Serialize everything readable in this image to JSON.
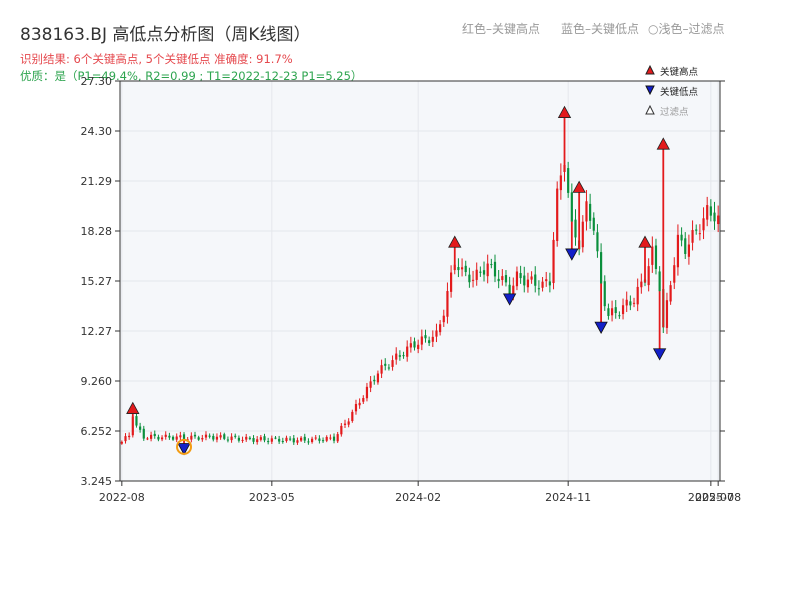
{
  "header": {
    "title": "838163.BJ 高低点分析图（周K线图）",
    "result_line": "识别结果: 6个关键高点, 5个关键低点  准确度: 91.7%",
    "quality_line": "优质：是（P1=49.4%, R2=0.99 ; T1=2022-12-23 P1=5.25）",
    "note_red": "红色–关键高点",
    "note_blue": "蓝色–关键低点",
    "note_filtered": "○浅色–过滤点"
  },
  "legend": {
    "high": "关键高点",
    "low": "关键低点",
    "filtered": "过滤点"
  },
  "colors": {
    "up": "#e31a1c",
    "down": "#0a8f3c",
    "high_marker": "#e31a1c",
    "low_marker": "#1320c8",
    "filtered_ring": "#f39c12",
    "plot_bg": "#f5f7fa",
    "grid": "#e4e7ec"
  },
  "chart_data": {
    "type": "candlestick",
    "title": "838163.BJ 高低点分析图（周K线图）",
    "y_ticks": [
      "3.245",
      "6.252",
      "9.260",
      "12.27",
      "15.27",
      "18.28",
      "21.29",
      "24.30",
      "27.30"
    ],
    "ylim": [
      3.245,
      27.3
    ],
    "x_ticks": [
      "2022-08",
      "2023-05",
      "2024-02",
      "2024-11",
      "2025-07",
      "2025-08"
    ],
    "x_tick_positions": [
      0,
      41,
      81,
      122,
      161,
      163
    ],
    "grid": true,
    "legend_position": "top-right",
    "close_anchors": [
      [
        0,
        5.6
      ],
      [
        1,
        5.8
      ],
      [
        2,
        6.0
      ],
      [
        3,
        7.3
      ],
      [
        4,
        6.5
      ],
      [
        6,
        5.9
      ],
      [
        20,
        5.85
      ],
      [
        24,
        5.9
      ],
      [
        35,
        5.75
      ],
      [
        50,
        5.7
      ],
      [
        58,
        5.8
      ],
      [
        62,
        7.0
      ],
      [
        70,
        9.8
      ],
      [
        80,
        11.5
      ],
      [
        86,
        12.0
      ],
      [
        88,
        13.5
      ],
      [
        91,
        16.5
      ],
      [
        93,
        15.8
      ],
      [
        96,
        15.4
      ],
      [
        100,
        16.2
      ],
      [
        104,
        15.3
      ],
      [
        106,
        14.7
      ],
      [
        108,
        15.5
      ],
      [
        115,
        15.0
      ],
      [
        117,
        15.3
      ],
      [
        119,
        20.5
      ],
      [
        121,
        22.6
      ],
      [
        123,
        18.5
      ],
      [
        125,
        17.5
      ],
      [
        127,
        19.8
      ],
      [
        129,
        18.5
      ],
      [
        131,
        15.0
      ],
      [
        133,
        13.2
      ],
      [
        136,
        13.5
      ],
      [
        140,
        14.2
      ],
      [
        143,
        15.5
      ],
      [
        145,
        17.0
      ],
      [
        147,
        15.0
      ],
      [
        148,
        12.4
      ],
      [
        150,
        15.2
      ],
      [
        152,
        17.8
      ],
      [
        154,
        17.2
      ],
      [
        156,
        18.0
      ],
      [
        158,
        18.5
      ],
      [
        160,
        19.5
      ],
      [
        163,
        19.0
      ]
    ],
    "key_highs": [
      {
        "i": 3,
        "value": 7.3
      },
      {
        "i": 91,
        "value": 17.3
      },
      {
        "i": 121,
        "value": 25.1
      },
      {
        "i": 125,
        "value": 20.6
      },
      {
        "i": 143,
        "value": 17.3
      },
      {
        "i": 148,
        "value": 23.2
      }
    ],
    "key_lows": [
      {
        "i": 17,
        "value": 5.5
      },
      {
        "i": 106,
        "value": 14.5
      },
      {
        "i": 123,
        "value": 17.2
      },
      {
        "i": 131,
        "value": 12.8
      },
      {
        "i": 147,
        "value": 11.2
      }
    ],
    "filtered_points": [
      {
        "i": 17,
        "value": 5.3
      }
    ]
  }
}
